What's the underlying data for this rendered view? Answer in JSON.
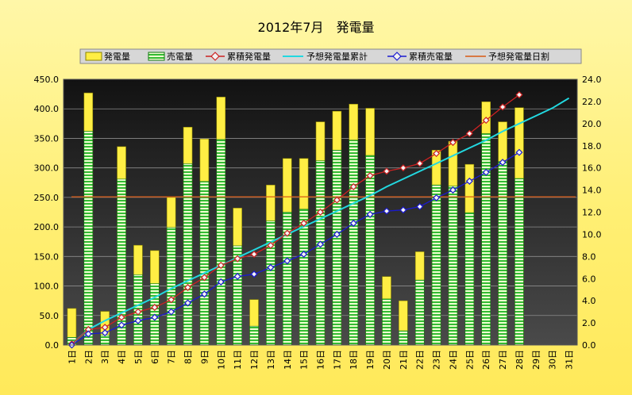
{
  "chart_data": {
    "type": "bar",
    "title": "2012年7月　発電量",
    "categories": [
      "1日",
      "2日",
      "3日",
      "4日",
      "5日",
      "6日",
      "7日",
      "8日",
      "9日",
      "10日",
      "11日",
      "12日",
      "13日",
      "14日",
      "15日",
      "16日",
      "17日",
      "18日",
      "19日",
      "20日",
      "21日",
      "22日",
      "23日",
      "24日",
      "25日",
      "26日",
      "27日",
      "28日",
      "29日",
      "30日",
      "31日"
    ],
    "left_axis": {
      "ylim": [
        0,
        450
      ],
      "ticks": [
        "0.0",
        "50.0",
        "100.0",
        "150.0",
        "200.0",
        "250.0",
        "300.0",
        "350.0",
        "400.0",
        "450.0"
      ]
    },
    "right_axis": {
      "ylim": [
        0,
        24
      ],
      "ticks": [
        "0.0",
        "2.0",
        "4.0",
        "6.0",
        "8.0",
        "10.0",
        "12.0",
        "14.0",
        "16.0",
        "18.0",
        "20.0",
        "22.0",
        "24.0"
      ]
    },
    "legend": [
      "発電量",
      "売電量",
      "累積発電量",
      "予想発電量累計",
      "累積売電量",
      "予想発電量日割"
    ],
    "series": [
      {
        "name": "発電量",
        "axis": "left",
        "kind": "bar",
        "values": [
          62,
          427,
          57,
          336,
          169,
          160,
          250,
          369,
          349,
          420,
          232,
          77,
          271,
          316,
          316,
          378,
          396,
          408,
          401,
          116,
          75,
          158,
          330,
          345,
          306,
          412,
          378,
          402,
          null,
          null,
          null
        ]
      },
      {
        "name": "売電量",
        "axis": "left",
        "kind": "bar",
        "values": [
          13,
          362,
          17,
          281,
          119,
          104,
          199,
          307,
          277,
          348,
          168,
          32,
          210,
          225,
          230,
          312,
          330,
          347,
          321,
          78,
          24,
          110,
          271,
          269,
          224,
          358,
          311,
          282,
          null,
          null,
          null
        ]
      },
      {
        "name": "累積発電量",
        "axis": "right",
        "kind": "line",
        "values": [
          0.1,
          1.4,
          1.6,
          2.5,
          3.0,
          3.4,
          4.1,
          5.2,
          6.1,
          7.2,
          7.8,
          8.2,
          9.0,
          10.1,
          11.0,
          12.0,
          13.1,
          14.3,
          15.3,
          15.7,
          16.0,
          16.4,
          17.3,
          18.3,
          19.1,
          20.3,
          21.5,
          22.6,
          null,
          null,
          null
        ]
      },
      {
        "name": "予想発電量累計",
        "axis": "right",
        "kind": "line",
        "values": [
          0.1,
          1.4,
          2.2,
          2.9,
          3.6,
          4.3,
          5.1,
          5.8,
          6.5,
          7.2,
          7.9,
          8.6,
          9.3,
          10.0,
          10.7,
          11.4,
          12.1,
          12.8,
          13.5,
          14.3,
          15.0,
          15.7,
          16.4,
          17.1,
          17.8,
          18.5,
          19.3,
          20.0,
          20.7,
          21.4,
          22.3
        ]
      },
      {
        "name": "累積売電量",
        "axis": "right",
        "kind": "line",
        "values": [
          0.0,
          1.0,
          1.1,
          1.8,
          2.2,
          2.5,
          3.0,
          3.8,
          4.6,
          5.7,
          6.2,
          6.4,
          7.0,
          7.6,
          8.2,
          9.1,
          10.0,
          11.0,
          11.8,
          12.1,
          12.2,
          12.5,
          13.3,
          14.0,
          14.8,
          15.6,
          16.5,
          17.4,
          null,
          null,
          null
        ]
      },
      {
        "name": "予想発電量日割",
        "axis": "left",
        "kind": "hline",
        "value": 251
      }
    ],
    "colors": {
      "bar_gen": "#ffee44",
      "bar_gen_stroke": "#8a8400",
      "bar_sell_a": "#33bb33",
      "bar_sell_b": "#eeffd0",
      "bar_sell_stroke": "#117711",
      "cum_gen": "#cc2222",
      "forecast_cum": "#22d8e0",
      "cum_sell": "#1a1ad0",
      "daily_forecast": "#d85a14",
      "plot_top": "#121212",
      "plot_bottom": "#4a4a4a",
      "grid": "#8c8c8c"
    }
  }
}
